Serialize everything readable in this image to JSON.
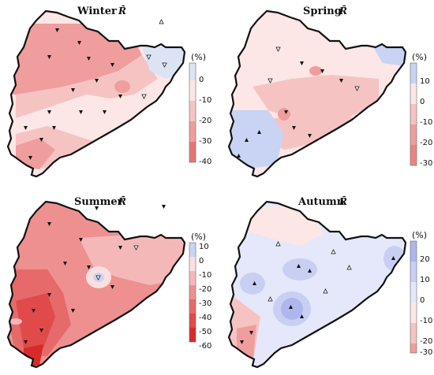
{
  "panels": [
    {
      "id": "winter",
      "title": "Winter",
      "symbol": "R̄",
      "unit": "(%)",
      "palette": [
        "#dbe3f5",
        "#fce6e6",
        "#f6c3c3",
        "#ef9d9d",
        "#e87575"
      ],
      "bands": [
        {
          "label": "0",
          "color": "#dbe3f5"
        },
        {
          "label": "-10",
          "color": "#fce6e6"
        },
        {
          "label": "-20",
          "color": "#f6c3c3"
        },
        {
          "label": "-30",
          "color": "#ef9d9d"
        },
        {
          "label": "-40",
          "color": "#e87575"
        }
      ],
      "ticks": [
        "0",
        "-10",
        "-20",
        "-30",
        "-40"
      ]
    },
    {
      "id": "spring",
      "title": "Spring",
      "symbol": "R̄",
      "unit": "(%)",
      "palette": [
        "#c9d3f3",
        "#fce6e6",
        "#f6c3c3",
        "#ef9d9d",
        "#ea8484"
      ],
      "ticks": [
        "10",
        "0",
        "-10",
        "-20",
        "-30"
      ]
    },
    {
      "id": "summer",
      "title": "Summer",
      "symbol": "R̄",
      "unit": "(%)",
      "palette": [
        "#c9d3f3",
        "#fbe0e0",
        "#f5b8b8",
        "#ee9090",
        "#e66a6a",
        "#e04a4a",
        "#d92a2a"
      ],
      "ticks": [
        "10",
        "0",
        "-10",
        "-20",
        "-30",
        "-40",
        "-50",
        "-60"
      ]
    },
    {
      "id": "autumn",
      "title": "Autumn",
      "symbol": "R̄",
      "unit": "(%)",
      "palette": [
        "#aeb6ec",
        "#c9cff3",
        "#e4e8fa",
        "#fce6e6",
        "#f6c3c3",
        "#ef9d9d"
      ],
      "ticks": [
        "20",
        "10",
        "0",
        "-10",
        "-20",
        "-30"
      ]
    }
  ]
}
